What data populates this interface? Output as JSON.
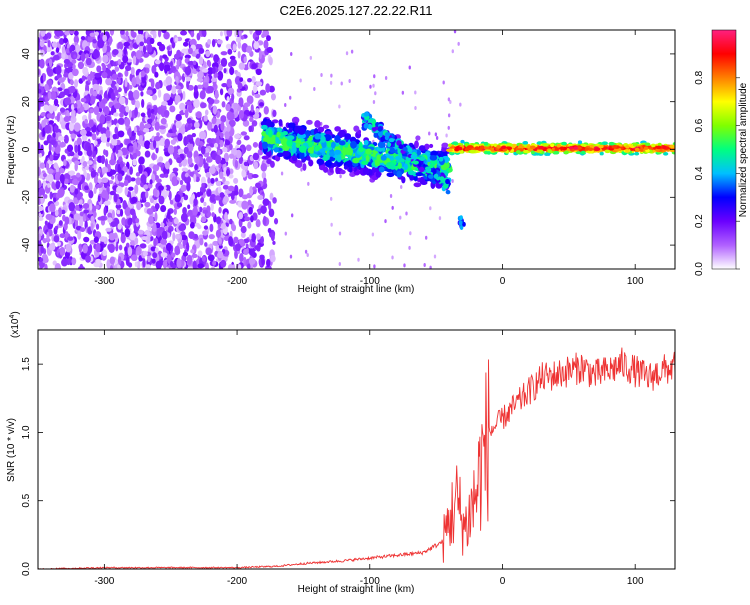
{
  "title": "C2E6.2025.127.22.22.R11",
  "chart_data": [
    {
      "type": "heatmap",
      "title": "C2E6.2025.127.22.22.R11",
      "xlabel": "Height of straight line (km)",
      "ylabel": "Frequency (Hz)",
      "xlim": [
        -350,
        130
      ],
      "ylim": [
        -50,
        50
      ],
      "x_ticks": [
        -300,
        -200,
        -100,
        0,
        100
      ],
      "y_ticks": [
        -40,
        -20,
        0,
        20,
        40
      ],
      "colorbar": {
        "label": "Normalized spectral amplitude",
        "range": [
          0,
          1
        ],
        "ticks": [
          0.0,
          0.2,
          0.4,
          0.6,
          0.8
        ],
        "tick_labels": [
          "0.0",
          "0.2",
          "0.4",
          "0.6",
          "0.8"
        ],
        "colors": [
          "#ffffff",
          "#b060ff",
          "#6a00ff",
          "#0000ff",
          "#00c0ff",
          "#00ff80",
          "#80ff00",
          "#ffff00",
          "#ff8000",
          "#ff0000",
          "#ff2080"
        ]
      },
      "features": [
        {
          "x_range": [
            -350,
            -170
          ],
          "y_range": [
            -50,
            50
          ],
          "amplitude": 0.15
        },
        {
          "x_range": [
            -180,
            -40
          ],
          "y_center_start": 5,
          "y_center_end": -8,
          "amplitude": 0.4
        },
        {
          "x_range": [
            -40,
            130
          ],
          "y_center": 0.5,
          "amplitude": 0.95
        }
      ]
    },
    {
      "type": "line",
      "xlabel": "Height of straight line (km)",
      "ylabel": "SNR (10 * v/v)",
      "y_scale_label": "(x10",
      "y_scale_exp": "4",
      "xlim": [
        -350,
        130
      ],
      "ylim": [
        0,
        1.75
      ],
      "x_ticks": [
        -300,
        -200,
        -100,
        0,
        100
      ],
      "y_ticks": [
        0.0,
        0.5,
        1.0,
        1.5
      ],
      "y_tick_labels": [
        "0.0",
        "0.5",
        "1.0",
        "1.5"
      ],
      "series": [
        {
          "color": "#ee3333",
          "x": [
            -350,
            -300,
            -250,
            -200,
            -170,
            -150,
            -120,
            -100,
            -80,
            -60,
            -45,
            -35,
            -28,
            -20,
            -15,
            -10,
            -5,
            0,
            10,
            20,
            30,
            40,
            50,
            60,
            70,
            80,
            90,
            100,
            110,
            120,
            130
          ],
          "y": [
            0.0,
            0.01,
            0.01,
            0.01,
            0.02,
            0.04,
            0.06,
            0.08,
            0.1,
            0.12,
            0.2,
            0.5,
            0.3,
            0.55,
            0.8,
            1.0,
            1.05,
            1.1,
            1.2,
            1.3,
            1.4,
            1.42,
            1.45,
            1.48,
            1.42,
            1.45,
            1.5,
            1.45,
            1.4,
            1.45,
            1.48
          ]
        }
      ]
    }
  ]
}
